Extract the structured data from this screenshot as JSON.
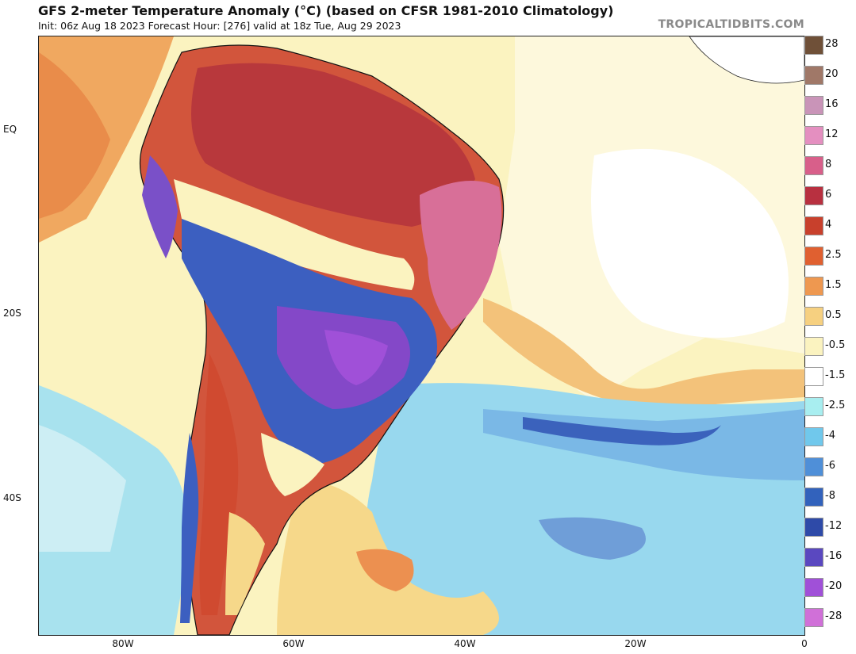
{
  "header": {
    "title": "GFS 2-meter Temperature Anomaly (°C) (based on CFSR 1981-2010 Climatology)",
    "subtitle": "Init: 06z Aug 18 2023   Forecast Hour: [276]   valid at 18z Tue, Aug 29 2023",
    "credit": "TROPICALTIDBITS.COM"
  },
  "axes": {
    "lat_labels": [
      "EQ",
      "20S",
      "40S"
    ],
    "lon_labels": [
      "80W",
      "60W",
      "40W",
      "20W",
      "0"
    ]
  },
  "colorbar": {
    "labels": [
      "28",
      "20",
      "16",
      "12",
      "8",
      "6",
      "4",
      "2.5",
      "1.5",
      "0.5",
      "-0.5",
      "-1.5",
      "-2.5",
      "-4",
      "-6",
      "-8",
      "-12",
      "-16",
      "-20",
      "-28"
    ],
    "colors": [
      "#6f5038",
      "#a07868",
      "#c994b8",
      "#e48fc0",
      "#d85f8a",
      "#b83040",
      "#c8402c",
      "#e06030",
      "#ee9850",
      "#f6d080",
      "#fbf3c0",
      "#ffffff",
      "#a8eef0",
      "#70c8ec",
      "#4f8fd8",
      "#3262bc",
      "#2e4aa8",
      "#5a48c0",
      "#a050d8",
      "#d070d8",
      "#e8a0d0",
      "#f4c8c4"
    ]
  },
  "map": {
    "region": "South America and South Atlantic"
  }
}
